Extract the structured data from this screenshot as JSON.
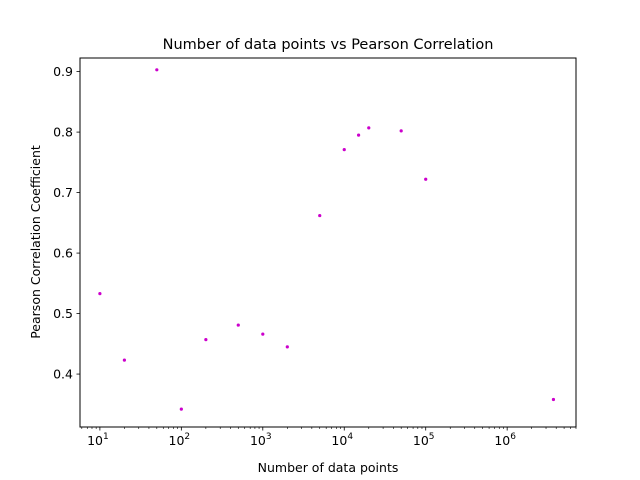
{
  "chart_data": {
    "type": "scatter",
    "title": "Number of data points vs Pearson Correlation",
    "xlabel": "Number of data points",
    "ylabel": "Pearson Correlation Coefficient",
    "x_scale": "log",
    "xlim": [
      5.7,
      7000000
    ],
    "ylim": [
      0.3125,
      0.9225
    ],
    "x_ticks": [
      {
        "value": 10,
        "base": "10",
        "exp": "1"
      },
      {
        "value": 100,
        "base": "10",
        "exp": "2"
      },
      {
        "value": 1000,
        "base": "10",
        "exp": "3"
      },
      {
        "value": 10000,
        "base": "10",
        "exp": "4"
      },
      {
        "value": 100000,
        "base": "10",
        "exp": "5"
      },
      {
        "value": 1000000,
        "base": "10",
        "exp": "6"
      }
    ],
    "y_ticks": [
      {
        "value": 0.4,
        "label": "0.4"
      },
      {
        "value": 0.5,
        "label": "0.5"
      },
      {
        "value": 0.6,
        "label": "0.6"
      },
      {
        "value": 0.7,
        "label": "0.7"
      },
      {
        "value": 0.8,
        "label": "0.8"
      },
      {
        "value": 0.9,
        "label": "0.9"
      }
    ],
    "grid": false,
    "marker_color": "#cc00cc",
    "series": [
      {
        "points": [
          {
            "x": 10,
            "y": 0.533
          },
          {
            "x": 20,
            "y": 0.423
          },
          {
            "x": 50,
            "y": 0.903
          },
          {
            "x": 100,
            "y": 0.342
          },
          {
            "x": 200,
            "y": 0.457
          },
          {
            "x": 500,
            "y": 0.481
          },
          {
            "x": 1000,
            "y": 0.466
          },
          {
            "x": 2000,
            "y": 0.445
          },
          {
            "x": 5000,
            "y": 0.662
          },
          {
            "x": 10000,
            "y": 0.771
          },
          {
            "x": 15000,
            "y": 0.795
          },
          {
            "x": 20000,
            "y": 0.807
          },
          {
            "x": 50000,
            "y": 0.802
          },
          {
            "x": 100000,
            "y": 0.722
          },
          {
            "x": 3700000,
            "y": 0.358
          }
        ]
      }
    ]
  }
}
